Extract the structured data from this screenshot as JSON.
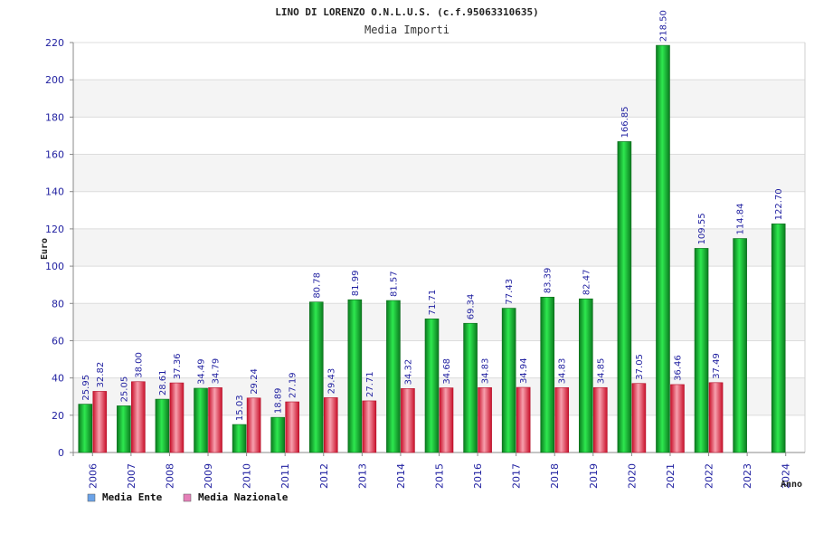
{
  "chart_data": {
    "type": "bar",
    "title": "LINO DI LORENZO O.N.L.U.S. (c.f.95063310635)",
    "subtitle": "Media Importi",
    "ylabel": "Euro",
    "xlabel": "Anno",
    "ylim": [
      0,
      220
    ],
    "yticks": [
      0,
      20,
      40,
      60,
      80,
      100,
      120,
      140,
      160,
      180,
      200,
      220
    ],
    "grid": true,
    "legend_position": "bottom-left",
    "categories": [
      "2006",
      "2007",
      "2008",
      "2009",
      "2010",
      "2011",
      "2012",
      "2013",
      "2014",
      "2015",
      "2016",
      "2017",
      "2018",
      "2019",
      "2020",
      "2021",
      "2022",
      "2023",
      "2024"
    ],
    "series": [
      {
        "name": "Media Ente",
        "color": "#1db83a",
        "legend_color": "#6ba3e8",
        "values": [
          25.95,
          25.05,
          28.61,
          34.49,
          15.03,
          18.89,
          80.78,
          81.99,
          81.57,
          71.71,
          69.34,
          77.43,
          83.39,
          82.47,
          166.85,
          218.5,
          109.55,
          114.84,
          122.7
        ],
        "labels": [
          "25.95",
          "25.05",
          "28.61",
          "34.49",
          "15.03",
          "18.89",
          "80.78",
          "81.99",
          "81.57",
          "71.71",
          "69.34",
          "77.43",
          "83.39",
          "82.47",
          "166.85",
          "218.50",
          "109.55",
          "114.84",
          "122.70"
        ]
      },
      {
        "name": "Media Nazionale",
        "color": "#e8344a",
        "legend_color": "#e57fb8",
        "values": [
          32.82,
          38.0,
          37.36,
          34.79,
          29.24,
          27.19,
          29.43,
          27.71,
          34.32,
          34.68,
          34.83,
          34.94,
          34.83,
          34.85,
          37.05,
          36.46,
          37.49,
          null,
          null
        ],
        "labels": [
          "32.82",
          "38.00",
          "37.36",
          "34.79",
          "29.24",
          "27.19",
          "29.43",
          "27.71",
          "34.32",
          "34.68",
          "34.83",
          "34.94",
          "34.83",
          "34.85",
          "37.05",
          "36.46",
          "37.49",
          null,
          null
        ]
      }
    ]
  }
}
